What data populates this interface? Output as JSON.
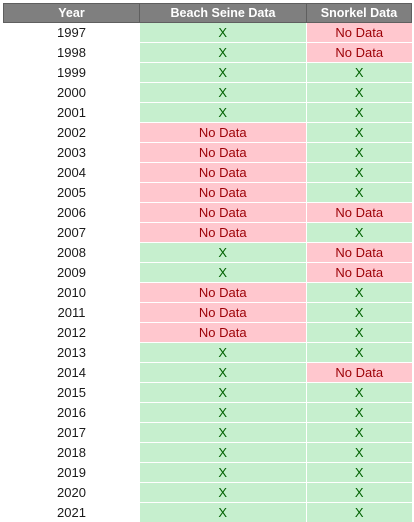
{
  "headers": {
    "year": "Year",
    "beach": "Beach Seine Data",
    "snorkel": "Snorkel Data"
  },
  "colors": {
    "header_bg": "#7f7f7f",
    "has_data_bg": "#c6efce",
    "has_data_text": "#006100",
    "no_data_bg": "#ffc7ce",
    "no_data_text": "#9c0006"
  },
  "rows": [
    {
      "year": "1997",
      "beach": "X",
      "snorkel": "No Data"
    },
    {
      "year": "1998",
      "beach": "X",
      "snorkel": "No Data"
    },
    {
      "year": "1999",
      "beach": "X",
      "snorkel": "X"
    },
    {
      "year": "2000",
      "beach": "X",
      "snorkel": "X"
    },
    {
      "year": "2001",
      "beach": "X",
      "snorkel": "X"
    },
    {
      "year": "2002",
      "beach": "No Data",
      "snorkel": "X"
    },
    {
      "year": "2003",
      "beach": "No Data",
      "snorkel": "X"
    },
    {
      "year": "2004",
      "beach": "No Data",
      "snorkel": "X"
    },
    {
      "year": "2005",
      "beach": "No Data",
      "snorkel": "X"
    },
    {
      "year": "2006",
      "beach": "No Data",
      "snorkel": "No Data"
    },
    {
      "year": "2007",
      "beach": "No Data",
      "snorkel": "X"
    },
    {
      "year": "2008",
      "beach": "X",
      "snorkel": "No Data"
    },
    {
      "year": "2009",
      "beach": "X",
      "snorkel": "No Data"
    },
    {
      "year": "2010",
      "beach": "No Data",
      "snorkel": "X"
    },
    {
      "year": "2011",
      "beach": "No Data",
      "snorkel": "X"
    },
    {
      "year": "2012",
      "beach": "No Data",
      "snorkel": "X"
    },
    {
      "year": "2013",
      "beach": "X",
      "snorkel": "X"
    },
    {
      "year": "2014",
      "beach": "X",
      "snorkel": "No Data"
    },
    {
      "year": "2015",
      "beach": "X",
      "snorkel": "X"
    },
    {
      "year": "2016",
      "beach": "X",
      "snorkel": "X"
    },
    {
      "year": "2017",
      "beach": "X",
      "snorkel": "X"
    },
    {
      "year": "2018",
      "beach": "X",
      "snorkel": "X"
    },
    {
      "year": "2019",
      "beach": "X",
      "snorkel": "X"
    },
    {
      "year": "2020",
      "beach": "X",
      "snorkel": "X"
    },
    {
      "year": "2021",
      "beach": "X",
      "snorkel": "X"
    }
  ]
}
